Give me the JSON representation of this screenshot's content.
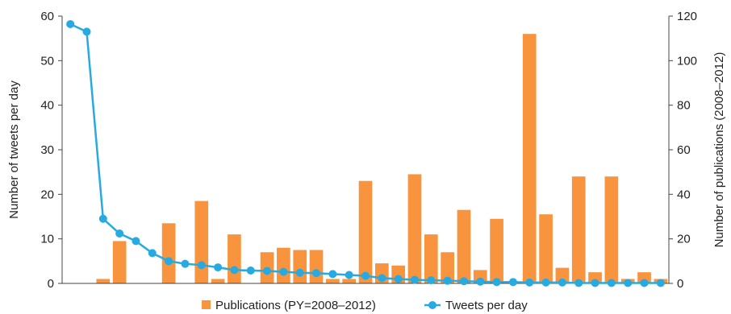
{
  "chart_data": {
    "type": "bar",
    "xlabel": "",
    "y_left": {
      "label": "Number of tweets per day",
      "ylim": [
        0,
        60
      ],
      "ticks": [
        0,
        10,
        20,
        30,
        40,
        50,
        60
      ]
    },
    "y_right": {
      "label": "Number of publications (2008–2012)",
      "ylim": [
        0,
        120
      ],
      "ticks": [
        0,
        20,
        40,
        60,
        80,
        100,
        120
      ]
    },
    "grid": false,
    "legend_placement": "bottom",
    "series": [
      {
        "name": "Publications (PY=2008–2012)",
        "type": "bar",
        "axis": "right",
        "color": "#F7943D",
        "values": [
          0,
          0,
          2,
          19,
          0,
          0,
          27,
          0,
          37,
          2,
          22,
          0,
          14,
          16,
          15,
          15,
          2,
          2,
          46,
          9,
          8,
          49,
          22,
          14,
          33,
          6,
          29,
          0,
          112,
          31,
          7,
          48,
          5,
          48,
          2,
          5,
          2
        ]
      },
      {
        "name": "Tweets per day",
        "type": "line",
        "axis": "left",
        "color": "#27AAE1",
        "values": [
          58.2,
          56.5,
          14.5,
          11.2,
          9.5,
          6.8,
          5.0,
          4.4,
          4.1,
          3.6,
          3.0,
          2.9,
          2.8,
          2.6,
          2.4,
          2.3,
          2.1,
          1.9,
          1.7,
          1.2,
          1.0,
          0.8,
          0.7,
          0.6,
          0.5,
          0.4,
          0.3,
          0.3,
          0.2,
          0.2,
          0.2,
          0.1,
          0.1,
          0.1,
          0.1,
          0.1,
          0.1
        ]
      }
    ]
  }
}
